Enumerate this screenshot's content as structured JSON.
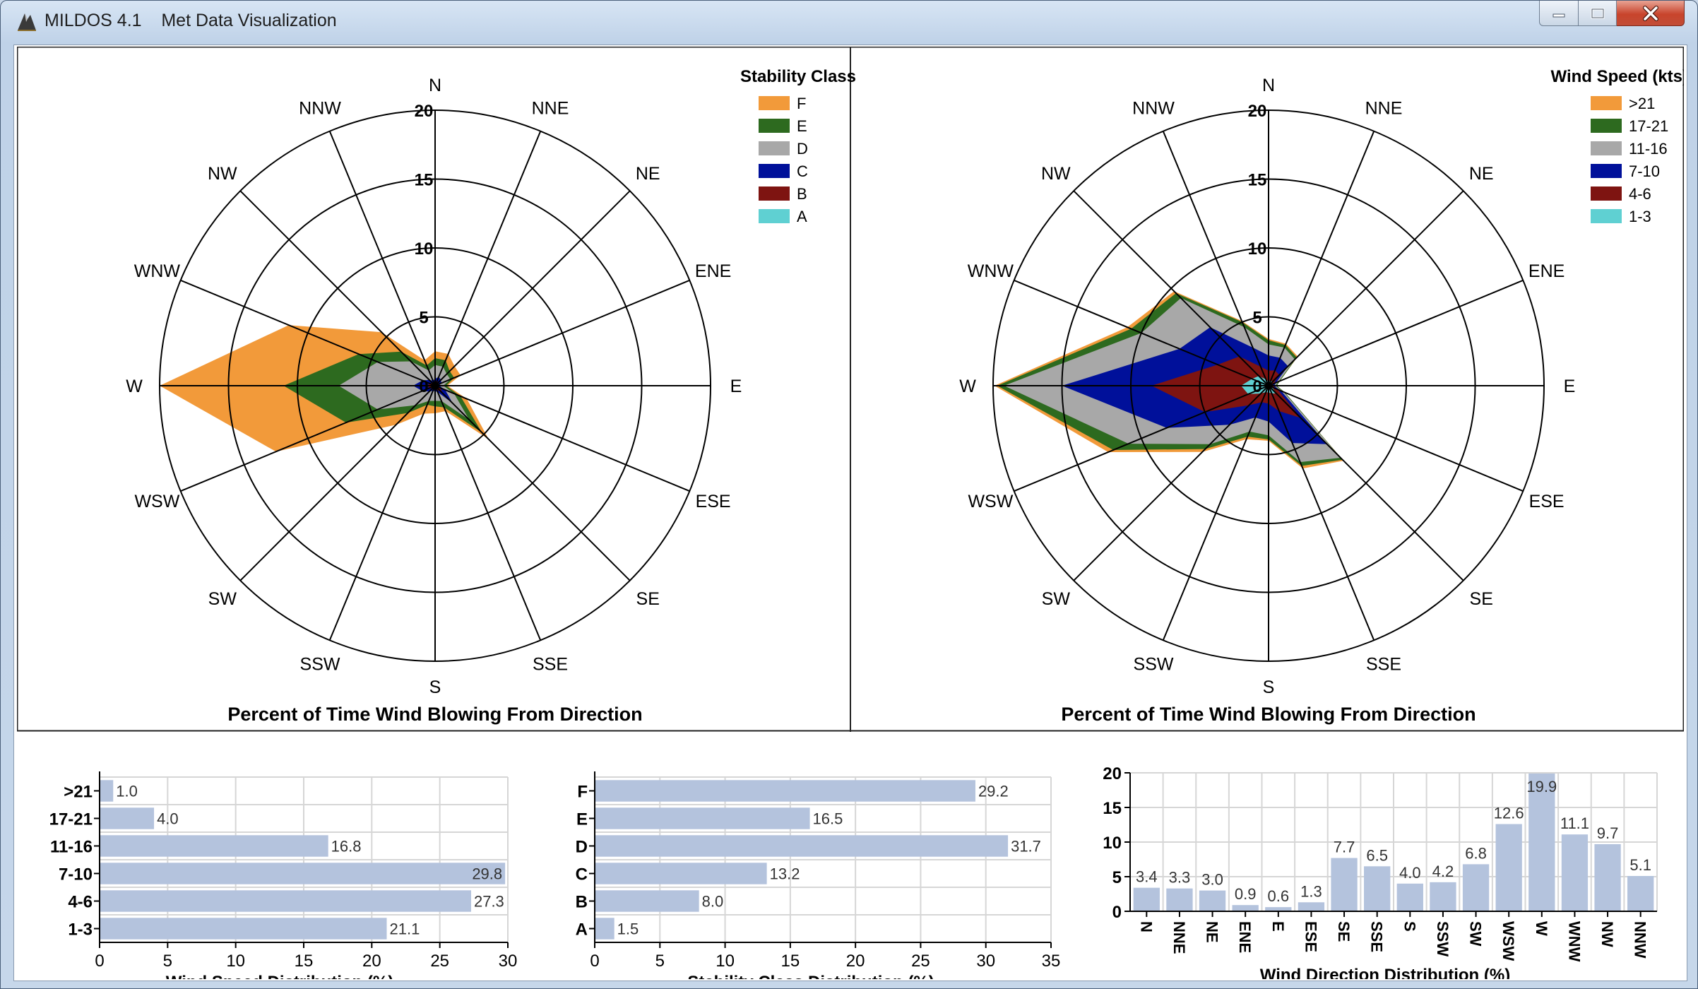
{
  "window": {
    "app_name": "MILDOS 4.1",
    "title": "Met Data Visualization",
    "controls": {
      "minimize": "minimize-icon",
      "maximize": "maximize-icon",
      "close": "close-icon"
    }
  },
  "colors": {
    "F": "#F29A3A",
    ">21": "#F29A3A",
    "E": "#2D6A1F",
    "17-21": "#2D6A1F",
    "D": "#A8A8A8",
    "11-16": "#A8A8A8",
    "C": "#00109A",
    "7-10": "#00109A",
    "B": "#7E1411",
    "4-6": "#7E1411",
    "A": "#5FD0D2",
    "1-3": "#5FD0D2",
    "bar": "#B4C3DD"
  },
  "chart_data": [
    {
      "type": "radar",
      "id": "stability-rose",
      "xlabel": "Percent of Time Wind Blowing From Direction",
      "directions": [
        "N",
        "NNE",
        "NE",
        "ENE",
        "E",
        "ESE",
        "SE",
        "SSE",
        "S",
        "SSW",
        "SW",
        "WSW",
        "W",
        "WNW",
        "NW",
        "NNW"
      ],
      "radial_ticks": [
        "0",
        "5",
        "10",
        "15",
        "20"
      ],
      "rmax": 20,
      "legend": {
        "title": "Stability Class",
        "position": "top-right"
      },
      "series": [
        {
          "name": "F",
          "values": [
            2.5,
            2.5,
            2,
            2,
            0.9,
            2.5,
            5.5,
            2,
            2,
            2.2,
            4,
            12.5,
            20,
            11.5,
            5.5,
            2
          ]
        },
        {
          "name": "E",
          "values": [
            2,
            2,
            1.5,
            1.5,
            0.8,
            2,
            4.8,
            1.7,
            1.5,
            1.5,
            2.8,
            7,
            11,
            6,
            3.5,
            1.6
          ]
        },
        {
          "name": "D",
          "values": [
            1.5,
            1.5,
            1.2,
            1.2,
            0.6,
            1.5,
            3.5,
            1.2,
            1.1,
            1.2,
            2,
            4.5,
            7,
            4.5,
            2.5,
            1.2
          ]
        },
        {
          "name": "C",
          "values": [
            0.5,
            0.7,
            0.6,
            0.5,
            0.3,
            0.8,
            1.8,
            0.5,
            0.4,
            0.4,
            0.6,
            1,
            1.6,
            1,
            0.6,
            0.4
          ]
        },
        {
          "name": "B",
          "values": [
            0.3,
            0.4,
            0.3,
            0.3,
            0.2,
            0.4,
            0.8,
            0.3,
            0.2,
            0.2,
            0.3,
            0.4,
            0.6,
            0.4,
            0.3,
            0.2
          ]
        },
        {
          "name": "A",
          "values": [
            0.1,
            0.1,
            0.1,
            0.1,
            0.1,
            0.1,
            0.1,
            0.1,
            0.1,
            0.1,
            0.1,
            0.1,
            0.1,
            0.1,
            0.1,
            0.1
          ]
        }
      ]
    },
    {
      "type": "radar",
      "id": "speed-rose",
      "xlabel": "Percent of Time Wind Blowing From Direction",
      "directions": [
        "N",
        "NNE",
        "NE",
        "ENE",
        "E",
        "ESE",
        "SE",
        "SSE",
        "S",
        "SSW",
        "SW",
        "WSW",
        "W",
        "WNW",
        "NW",
        "NNW"
      ],
      "radial_ticks": [
        "0",
        "5",
        "10",
        "15",
        "20"
      ],
      "rmax": 20,
      "legend": {
        "title": "Wind Speed (kts)",
        "position": "top-right"
      },
      "series": [
        {
          "name": ">21",
          "values": [
            3.4,
            3.3,
            3,
            0.9,
            0.6,
            1.3,
            7.7,
            6.5,
            4,
            4.2,
            6.8,
            12.6,
            19.9,
            11.1,
            9.7,
            5.1
          ]
        },
        {
          "name": "17-21",
          "values": [
            3.3,
            3.2,
            2.9,
            0.9,
            0.6,
            1.3,
            7.6,
            6.3,
            3.9,
            4,
            6.5,
            12.2,
            19.7,
            10.8,
            9.5,
            5
          ]
        },
        {
          "name": "11-16",
          "values": [
            3,
            3,
            2.7,
            0.8,
            0.5,
            1.2,
            7.4,
            6,
            3.6,
            3.6,
            6,
            11,
            19.2,
            10,
            9,
            4.6
          ]
        },
        {
          "name": "7-10",
          "values": [
            2.2,
            2.2,
            2,
            0.6,
            0.4,
            1,
            6,
            4.5,
            2.6,
            2.5,
            4,
            8,
            15,
            7,
            6,
            3
          ]
        },
        {
          "name": "4-6",
          "values": [
            1.1,
            1.2,
            1.1,
            0.4,
            0.3,
            0.7,
            3.3,
            2,
            1.3,
            1.3,
            2,
            5,
            8.5,
            4,
            3,
            1.5
          ]
        },
        {
          "name": "1-3",
          "values": [
            0.3,
            0.4,
            0.4,
            0.2,
            0.2,
            0.3,
            0.8,
            0.6,
            0.5,
            0.5,
            0.8,
            1.6,
            2,
            1.3,
            1,
            0.5
          ]
        }
      ]
    },
    {
      "type": "bar",
      "id": "speed-dist",
      "orientation": "horizontal",
      "xlabel": "Wind Speed Distribution (%)",
      "categories": [
        ">21",
        "17-21",
        "11-16",
        "7-10",
        "4-6",
        "1-3"
      ],
      "values": [
        1.0,
        4.0,
        16.8,
        29.8,
        27.3,
        21.1
      ],
      "data_labels": [
        "1.0",
        "4.0",
        "16.8",
        "29.8",
        "27.3",
        "21.1"
      ],
      "xlim": [
        0,
        30
      ],
      "ticks": [
        "0",
        "5",
        "10",
        "15",
        "20",
        "25",
        "30"
      ],
      "grid": true
    },
    {
      "type": "bar",
      "id": "stability-dist",
      "orientation": "horizontal",
      "xlabel": "Stability Class Distribution (%)",
      "categories": [
        "F",
        "E",
        "D",
        "C",
        "B",
        "A"
      ],
      "values": [
        29.2,
        16.5,
        31.7,
        13.2,
        8.0,
        1.5
      ],
      "data_labels": [
        "29.2",
        "16.5",
        "31.7",
        "13.2",
        "8.0",
        "1.5"
      ],
      "xlim": [
        0,
        35
      ],
      "ticks": [
        "0",
        "5",
        "10",
        "15",
        "20",
        "25",
        "30",
        "35"
      ],
      "grid": true
    },
    {
      "type": "bar",
      "id": "direction-dist",
      "orientation": "vertical",
      "xlabel": "Wind Direction Distribution (%)",
      "categories": [
        "N",
        "NNE",
        "NE",
        "ENE",
        "E",
        "ESE",
        "SE",
        "SSE",
        "S",
        "SSW",
        "SW",
        "WSW",
        "W",
        "WNW",
        "NW",
        "NNW"
      ],
      "values": [
        3.4,
        3.3,
        3.0,
        0.9,
        0.6,
        1.3,
        7.7,
        6.5,
        4.0,
        4.2,
        6.8,
        12.6,
        19.9,
        11.1,
        9.7,
        5.1
      ],
      "data_labels": [
        "3.4",
        "3.3",
        "3.0",
        "0.9",
        "0.6",
        "1.3",
        "7.7",
        "6.5",
        "4.0",
        "4.2",
        "6.8",
        "12.6",
        "19.9",
        "11.1",
        "9.7",
        "5.1"
      ],
      "ylim": [
        0,
        20
      ],
      "ticks": [
        "0",
        "5",
        "10",
        "15",
        "20"
      ],
      "grid": true
    }
  ]
}
